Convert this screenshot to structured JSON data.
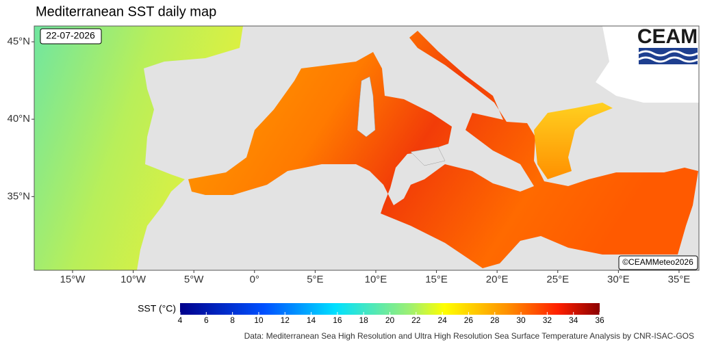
{
  "title": "Mediterranean SST daily map",
  "date": "22-07-2026",
  "logo": "CEAM",
  "credit": "©CEAMMeteo2026",
  "map": {
    "xlim": [
      -18.16,
      36.64
    ],
    "ylim": [
      30.24,
      46.02
    ],
    "xticks": [
      {
        "value": -15,
        "label": "15°W"
      },
      {
        "value": -10,
        "label": "10°W"
      },
      {
        "value": -5,
        "label": "5°W"
      },
      {
        "value": 0,
        "label": "0°"
      },
      {
        "value": 5,
        "label": "5°E"
      },
      {
        "value": 10,
        "label": "10°E"
      },
      {
        "value": 15,
        "label": "15°E"
      },
      {
        "value": 20,
        "label": "20°E"
      },
      {
        "value": 25,
        "label": "25°E"
      },
      {
        "value": 30,
        "label": "30°E"
      },
      {
        "value": 35,
        "label": "35°E"
      }
    ],
    "yticks": [
      {
        "value": 35,
        "label": "35°N"
      },
      {
        "value": 40,
        "label": "40°N"
      },
      {
        "value": 45,
        "label": "45°N"
      }
    ]
  },
  "colorbar": {
    "label": "SST (°C)",
    "lim": [
      4,
      36
    ],
    "ticks": [
      4,
      6,
      8,
      10,
      12,
      14,
      16,
      18,
      20,
      22,
      24,
      26,
      28,
      30,
      32,
      34,
      36
    ]
  },
  "source": "Data: Mediterranean Sea High Resolution and Ultra High Resolution Sea Surface Temperature Analysis by CNR-ISAC-GOS"
}
